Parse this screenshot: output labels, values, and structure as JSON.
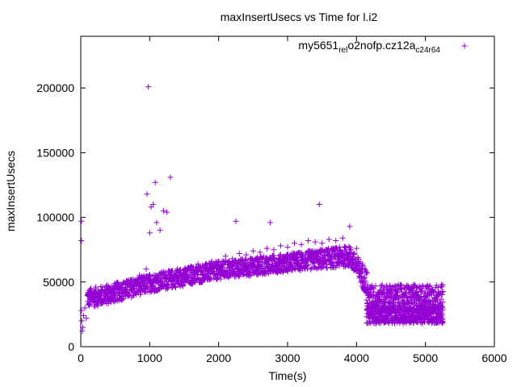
{
  "chart_data": {
    "type": "scatter",
    "title": "maxInsertUsecs vs Time for l.i2",
    "xlabel": "Time(s)",
    "ylabel": "maxInsertUsecs",
    "xlim": [
      0,
      6000
    ],
    "ylim": [
      0,
      240000
    ],
    "x_ticks": [
      0,
      1000,
      2000,
      3000,
      4000,
      5000,
      6000
    ],
    "y_ticks": [
      0,
      50000,
      100000,
      150000,
      200000
    ],
    "grid": false,
    "legend_position": "top-right",
    "marker": "+",
    "series": [
      {
        "name": "my5651_rel_o2nofp.cz12a_c24r64",
        "name_parts": {
          "a": "my5651",
          "b": "rel",
          "c": "o2nofp.cz12a",
          "d": "c24r64"
        },
        "color": "#9400d3",
        "points": [
          [
            10,
            97000
          ],
          [
            10,
            82000
          ],
          [
            10,
            28000
          ],
          [
            15,
            20000
          ],
          [
            20,
            12000
          ],
          [
            30,
            15000
          ],
          [
            40,
            24000
          ],
          [
            60,
            30000
          ],
          [
            80,
            22000
          ],
          [
            100,
            35000
          ],
          [
            120,
            40000
          ],
          [
            150,
            38000
          ],
          [
            200,
            42000
          ],
          [
            250,
            39000
          ],
          [
            300,
            43000
          ],
          [
            350,
            41000
          ],
          [
            400,
            45000
          ],
          [
            450,
            43000
          ],
          [
            500,
            47000
          ],
          [
            550,
            44000
          ],
          [
            600,
            48000
          ],
          [
            650,
            46000
          ],
          [
            700,
            49000
          ],
          [
            750,
            52000
          ],
          [
            800,
            50000
          ],
          [
            850,
            55000
          ],
          [
            900,
            53000
          ],
          [
            950,
            60000
          ],
          [
            960,
            118000
          ],
          [
            980,
            201000
          ],
          [
            1000,
            88000
          ],
          [
            1020,
            108000
          ],
          [
            1050,
            110000
          ],
          [
            1080,
            127000
          ],
          [
            1100,
            96000
          ],
          [
            1150,
            90000
          ],
          [
            1200,
            105000
          ],
          [
            1250,
            104000
          ],
          [
            1300,
            131000
          ],
          [
            1100,
            55000
          ],
          [
            1200,
            58000
          ],
          [
            1300,
            56000
          ],
          [
            1400,
            60000
          ],
          [
            1500,
            59000
          ],
          [
            1600,
            62000
          ],
          [
            1700,
            64000
          ],
          [
            1800,
            63000
          ],
          [
            1900,
            66000
          ],
          [
            2000,
            65000
          ],
          [
            2100,
            70000
          ],
          [
            2200,
            68000
          ],
          [
            2250,
            97000
          ],
          [
            2300,
            72000
          ],
          [
            2400,
            71000
          ],
          [
            2500,
            74000
          ],
          [
            2600,
            73000
          ],
          [
            2700,
            76000
          ],
          [
            2750,
            96000
          ],
          [
            2800,
            75000
          ],
          [
            2900,
            78000
          ],
          [
            3000,
            77000
          ],
          [
            3100,
            80000
          ],
          [
            3200,
            79000
          ],
          [
            3300,
            82000
          ],
          [
            3400,
            81000
          ],
          [
            3460,
            110000
          ],
          [
            3500,
            80000
          ],
          [
            3600,
            83000
          ],
          [
            3700,
            82000
          ],
          [
            3800,
            84000
          ],
          [
            3900,
            93000
          ],
          [
            4000,
            76000
          ],
          [
            4050,
            60000
          ],
          [
            4100,
            50000
          ],
          [
            4150,
            45000
          ],
          [
            4200,
            42000
          ],
          [
            4300,
            40000
          ],
          [
            4400,
            44000
          ],
          [
            4500,
            38000
          ],
          [
            4600,
            42000
          ],
          [
            4700,
            40000
          ],
          [
            4800,
            45000
          ],
          [
            4900,
            39000
          ],
          [
            5000,
            41000
          ],
          [
            5100,
            43000
          ],
          [
            5200,
            40000
          ],
          [
            5250,
            30000
          ],
          [
            4200,
            25000
          ],
          [
            4300,
            22000
          ],
          [
            4500,
            24000
          ],
          [
            4700,
            21000
          ],
          [
            4900,
            23000
          ],
          [
            5100,
            20000
          ],
          [
            5250,
            22000
          ]
        ]
      }
    ],
    "dense_bands": [
      {
        "x_from": 100,
        "x_to": 400,
        "lows": [
          30000,
          33000
        ],
        "highs": [
          45000,
          48000
        ]
      },
      {
        "x_from": 400,
        "x_to": 1000,
        "lows": [
          33000,
          42000
        ],
        "highs": [
          48000,
          56000
        ]
      },
      {
        "x_from": 1000,
        "x_to": 2000,
        "lows": [
          42000,
          52000
        ],
        "highs": [
          56000,
          66000
        ]
      },
      {
        "x_from": 2000,
        "x_to": 3000,
        "lows": [
          52000,
          58000
        ],
        "highs": [
          66000,
          72000
        ]
      },
      {
        "x_from": 3000,
        "x_to": 3900,
        "lows": [
          58000,
          62000
        ],
        "highs": [
          72000,
          78000
        ]
      },
      {
        "x_from": 3900,
        "x_to": 4150,
        "lows": [
          62000,
          40000
        ],
        "highs": [
          78000,
          60000
        ]
      },
      {
        "x_from": 4150,
        "x_to": 5250,
        "lows": [
          28000,
          28000
        ],
        "highs": [
          48000,
          48000
        ]
      },
      {
        "x_from": 4150,
        "x_to": 5250,
        "lows": [
          18000,
          18000
        ],
        "highs": [
          30000,
          30000
        ]
      }
    ]
  }
}
